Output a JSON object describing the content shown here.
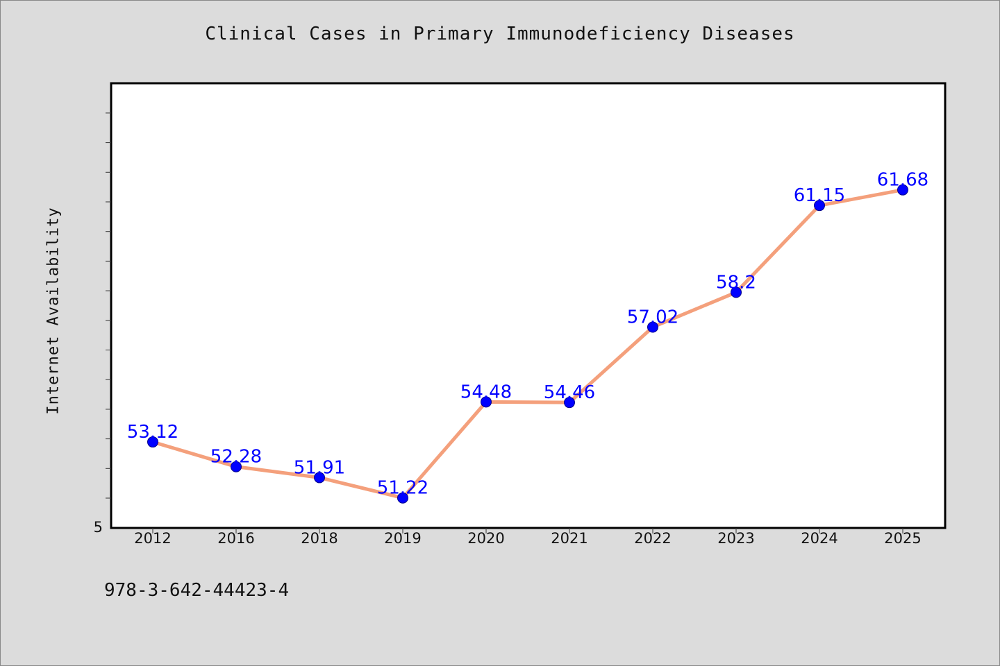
{
  "page": {
    "isbn_text": "978-3-642-44423-4"
  },
  "chart_data": {
    "type": "line",
    "title": "Clinical Cases in Primary Immunodeficiency Diseases",
    "xlabel": "",
    "ylabel": "Internet Availability",
    "categories": [
      "2012",
      "2016",
      "2018",
      "2019",
      "2020",
      "2021",
      "2022",
      "2023",
      "2024",
      "2025"
    ],
    "series": [
      {
        "values": [
          53.12,
          52.28,
          51.91,
          51.22,
          54.48,
          54.46,
          57.02,
          58.2,
          61.15,
          61.68
        ],
        "labels": [
          "53.12",
          "52.28",
          "51.91",
          "51.22",
          "54.48",
          "54.46",
          "57.02",
          "58.2",
          "61.15",
          "61.68"
        ]
      }
    ],
    "y_tick_label": "5",
    "ylim": [
      50.2,
      65.3
    ],
    "grid": false,
    "colors": {
      "line": "#f4a07c",
      "marker": "#0000ff",
      "label": "#0000ff",
      "background": "#dcdcdc",
      "plot_area": "#ffffff"
    }
  }
}
